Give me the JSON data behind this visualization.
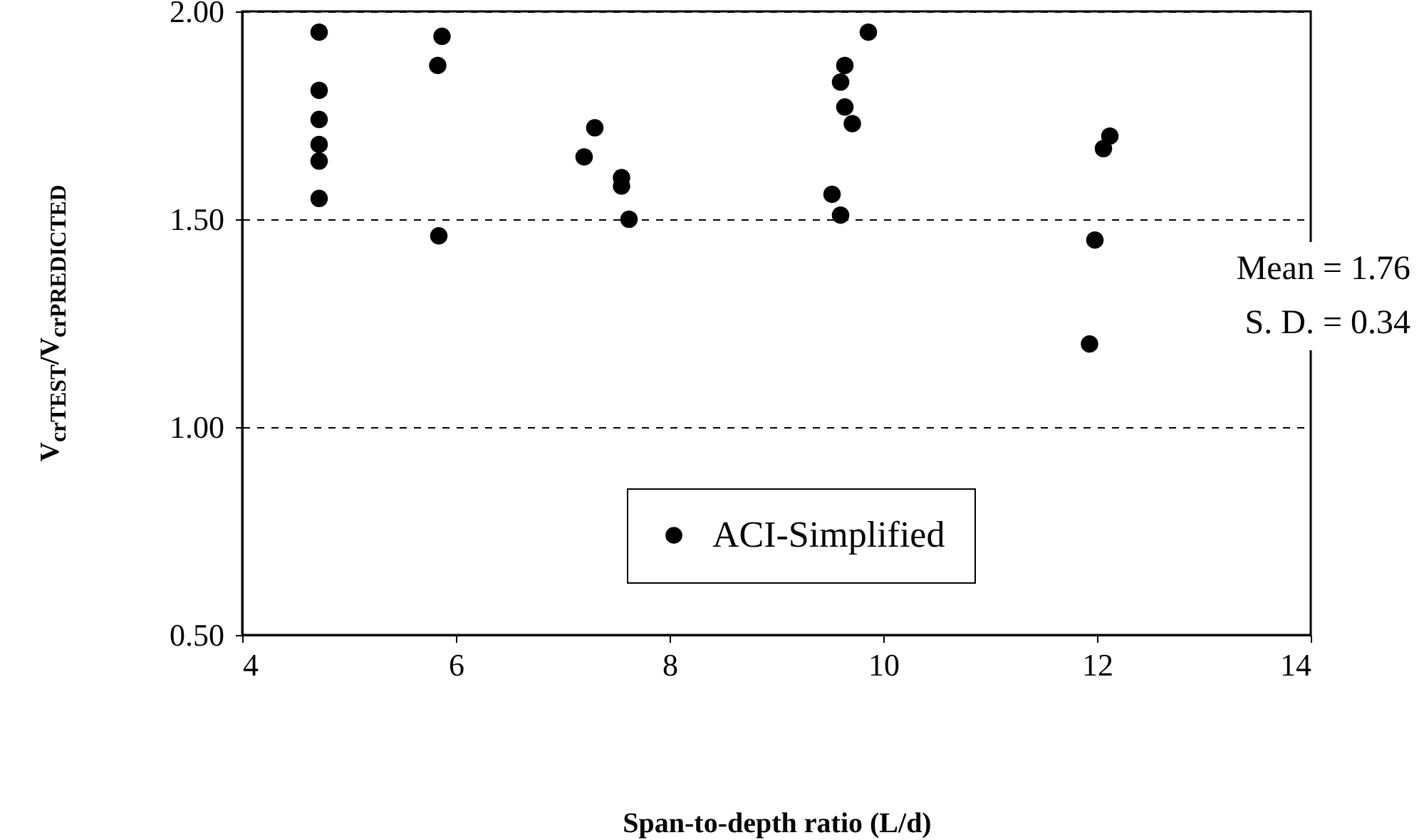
{
  "chart_data": {
    "type": "scatter",
    "xlabel": "Span-to-depth ratio (L/d)",
    "ylabel": "V$_{crTEST}$/V$_{crPREDICTED}$",
    "annotations": [
      "Mean = 1.76",
      "S. D. = 0.34"
    ],
    "xlim": [
      4,
      14
    ],
    "xticks": [
      4,
      6,
      8,
      10,
      12,
      14
    ],
    "ylim": [
      0.5,
      2
    ],
    "yticks": [
      {
        "value": 0.5,
        "label": "0.50"
      },
      {
        "value": 1,
        "label": "1.00"
      },
      {
        "value": 1.5,
        "label": "1.50"
      },
      {
        "value": 2,
        "label": "2.00"
      }
    ],
    "grid": "y",
    "legend": "bottom right",
    "marker": "circle",
    "series": [
      {
        "name": "ACI-Simplified",
        "color": "#000000",
        "x": [
          4.72,
          4.72,
          4.72,
          4.72,
          4.72,
          4.72,
          5.87,
          5.83,
          5.84,
          7.3,
          7.2,
          7.55,
          7.55,
          7.62,
          9.86,
          9.64,
          9.6,
          9.64,
          9.71,
          9.52,
          9.6,
          12.12,
          12.06,
          11.98,
          11.93
        ],
        "values": [
          1.95,
          1.81,
          1.74,
          1.68,
          1.64,
          1.55,
          1.94,
          1.87,
          1.46,
          1.72,
          1.65,
          1.6,
          1.58,
          1.5,
          1.95,
          1.87,
          1.83,
          1.77,
          1.73,
          1.56,
          1.51,
          1.7,
          1.67,
          1.45,
          1.2
        ]
      }
    ]
  }
}
